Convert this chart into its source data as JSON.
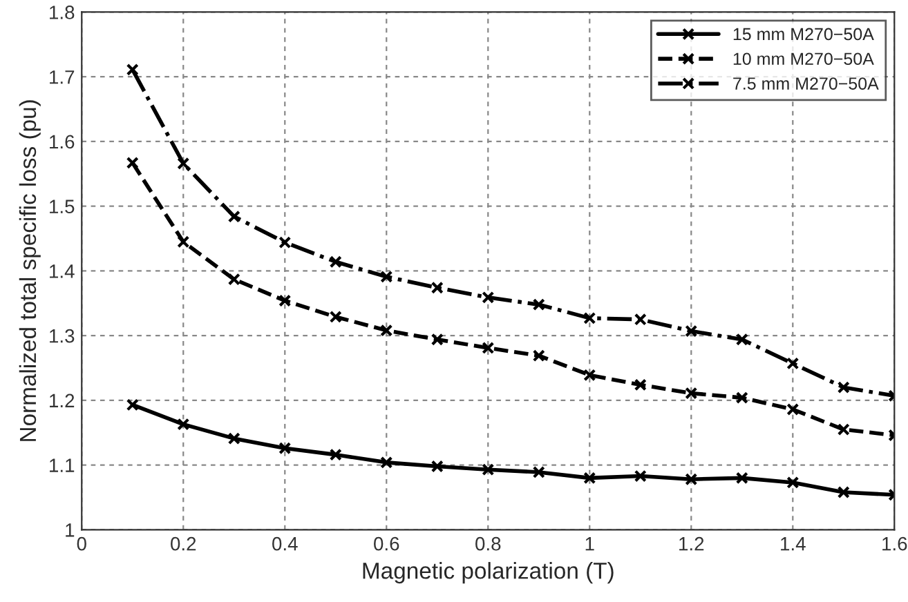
{
  "chart_data": {
    "type": "line",
    "xlabel": "Magnetic polarization (T)",
    "ylabel": "Normalized total specific loss (pu)",
    "x": [
      0.1,
      0.2,
      0.3,
      0.4,
      0.5,
      0.6,
      0.7,
      0.8,
      0.9,
      1.0,
      1.1,
      1.2,
      1.3,
      1.4,
      1.5,
      1.6
    ],
    "series": [
      {
        "name": "15 mm M270−50A",
        "color": "#000000",
        "line_style": "solid",
        "values": [
          1.193,
          1.163,
          1.141,
          1.126,
          1.116,
          1.104,
          1.098,
          1.093,
          1.089,
          1.08,
          1.083,
          1.078,
          1.08,
          1.073,
          1.058,
          1.054
        ]
      },
      {
        "name": "10 mm M270−50A",
        "color": "#000000",
        "line_style": "dashed",
        "values": [
          1.567,
          1.445,
          1.387,
          1.354,
          1.329,
          1.308,
          1.294,
          1.281,
          1.269,
          1.239,
          1.224,
          1.211,
          1.204,
          1.186,
          1.155,
          1.146
        ]
      },
      {
        "name": "7.5 mm M270−50A",
        "color": "#000000",
        "line_style": "dashdot",
        "values": [
          1.711,
          1.566,
          1.484,
          1.444,
          1.414,
          1.391,
          1.374,
          1.359,
          1.348,
          1.327,
          1.325,
          1.307,
          1.294,
          1.257,
          1.22,
          1.207
        ]
      }
    ],
    "xlim": [
      0,
      1.6
    ],
    "xticks": [
      0,
      0.2,
      0.4,
      0.6,
      0.8,
      1,
      1.2,
      1.4,
      1.6
    ],
    "ylim": [
      1,
      1.8
    ],
    "yticks": [
      1,
      1.1,
      1.2,
      1.3,
      1.4,
      1.5,
      1.6,
      1.7,
      1.8
    ],
    "grid": true,
    "legend": "top right",
    "marker": "cross"
  }
}
